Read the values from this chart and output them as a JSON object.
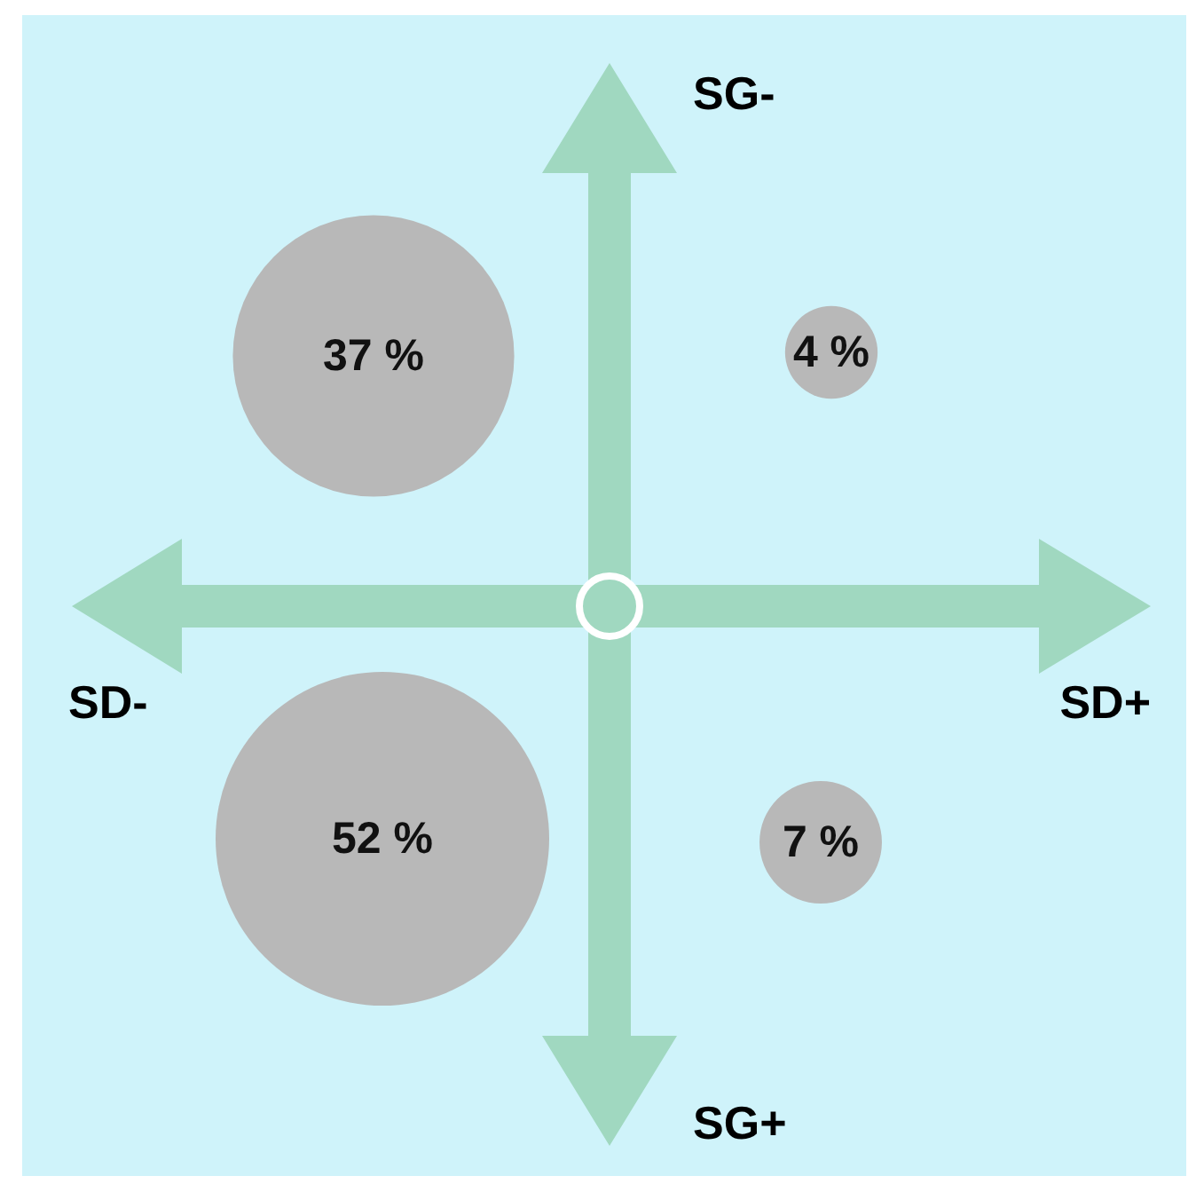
{
  "chart_data": {
    "type": "other",
    "values": [
      37,
      4,
      52,
      7
    ],
    "value_labels": [
      "37 %",
      "4 %",
      "52 %",
      "7 %"
    ],
    "colors": [
      "#b8b8b8",
      "#b8b8b8",
      "#b8b8b8",
      "#b8b8b8"
    ],
    "annotations": [
      "SG-",
      "SD-",
      "SD+",
      "SG+"
    ]
  }
}
